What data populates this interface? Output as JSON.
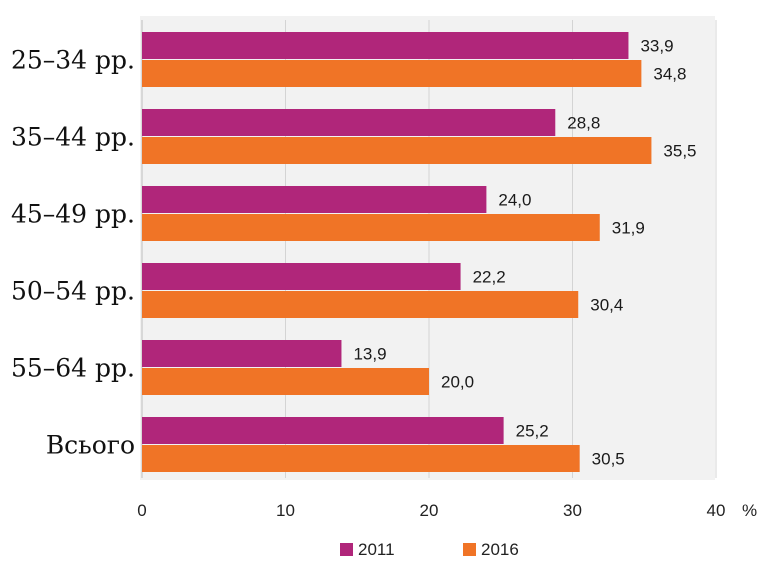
{
  "chart_data": {
    "type": "bar",
    "orientation": "horizontal",
    "categories": [
      "25–34 рр.",
      "35–44 рр.",
      "45–49 рр.",
      "50–54 рр.",
      "55–64 рр.",
      "Всього"
    ],
    "series": [
      {
        "name": "2011",
        "color": "#b0267a",
        "values": [
          33.9,
          28.8,
          24.0,
          22.2,
          13.9,
          25.2
        ],
        "labels": [
          "33,9",
          "28,8",
          "24,0",
          "22,2",
          "13,9",
          "25,2"
        ]
      },
      {
        "name": "2016",
        "color": "#f07426",
        "values": [
          34.8,
          35.5,
          31.9,
          30.4,
          20.0,
          30.5
        ],
        "labels": [
          "34,8",
          "35,5",
          "31,9",
          "30,4",
          "20,0",
          "30,5"
        ]
      }
    ],
    "xlim": [
      0,
      40
    ],
    "xticks": [
      0,
      10,
      20,
      30,
      40
    ],
    "xunit": "%",
    "title": "",
    "xlabel": "",
    "ylabel": "",
    "grid": true,
    "legend": "bottom",
    "plot_background": "#f2f2f2"
  }
}
